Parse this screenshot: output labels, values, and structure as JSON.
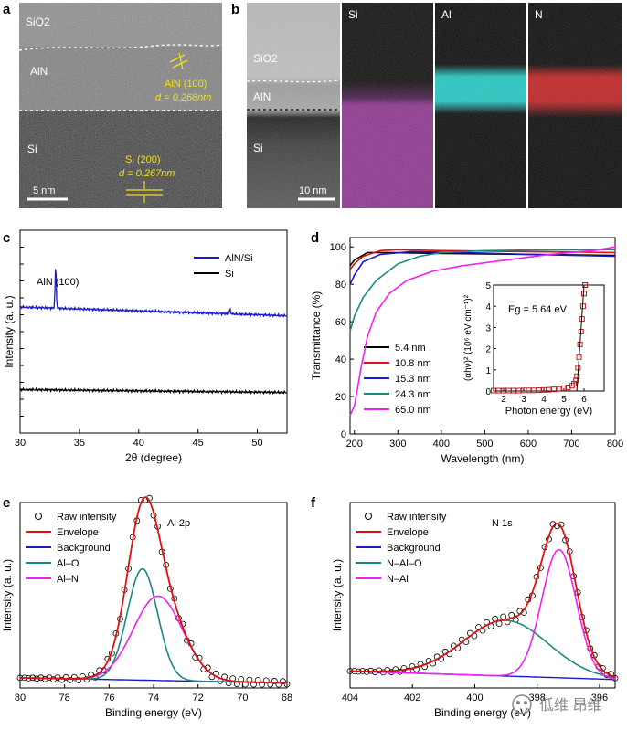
{
  "panels": {
    "a": {
      "label": "a",
      "layers": [
        "SiO2",
        "AlN",
        "Si"
      ],
      "aln_annot_1": "AlN (100)",
      "aln_annot_2": "d = 0.268nm",
      "si_annot_1": "Si (200)",
      "si_annot_2": "d = 0.267nm",
      "scalebar": "5 nm"
    },
    "b": {
      "label": "b",
      "layers": [
        "SiO2",
        "AlN",
        "Si"
      ],
      "scalebar": "10 nm",
      "maps": [
        {
          "title": "Si",
          "color": "#8a2a8c"
        },
        {
          "title": "Al",
          "color": "#14a3a0"
        },
        {
          "title": "N",
          "color": "#a01818"
        }
      ]
    }
  },
  "chart_data": [
    {
      "panel": "c",
      "type": "line",
      "xlabel": "2θ (degree)",
      "ylabel": "Intensity (a. u.)",
      "xlim": [
        30,
        52.5
      ],
      "xticks": [
        30,
        35,
        40,
        45,
        50
      ],
      "annotation": "AlN (100)",
      "series": [
        {
          "name": "AlN/Si",
          "color": "#1a1acc",
          "baseline_start": 8.7,
          "baseline_end": 8.1,
          "peaks": [
            {
              "x": 33.0,
              "height": 2.9
            },
            {
              "x": 47.7,
              "height": 0.3
            }
          ]
        },
        {
          "name": "Si",
          "color": "#000000",
          "baseline_start": 3.0,
          "baseline_end": 2.8,
          "peaks": []
        }
      ],
      "ylim": [
        0,
        14
      ]
    },
    {
      "panel": "d",
      "type": "line",
      "xlabel": "Wavelength (nm)",
      "ylabel": "Transmittance (%)",
      "xlim": [
        190,
        800
      ],
      "ylim": [
        0,
        105
      ],
      "xticks": [
        200,
        300,
        400,
        500,
        600,
        700,
        800
      ],
      "yticks": [
        0,
        20,
        40,
        60,
        80,
        100
      ],
      "series": [
        {
          "name": "5.4 nm",
          "color": "#000000",
          "points": [
            [
              190,
              90
            ],
            [
              200,
              93
            ],
            [
              230,
              97
            ],
            [
              280,
              97
            ],
            [
              400,
              96.5
            ],
            [
              600,
              96
            ],
            [
              800,
              95.5
            ]
          ]
        },
        {
          "name": "10.8 nm",
          "color": "#e01010",
          "points": [
            [
              190,
              88
            ],
            [
              200,
              91
            ],
            [
              220,
              95
            ],
            [
              260,
              98
            ],
            [
              300,
              98.5
            ],
            [
              400,
              98
            ],
            [
              600,
              97.5
            ],
            [
              800,
              97
            ]
          ]
        },
        {
          "name": "15.3 nm",
          "color": "#1a1acc",
          "points": [
            [
              190,
              80
            ],
            [
              200,
              85
            ],
            [
              220,
              92
            ],
            [
              260,
              96
            ],
            [
              330,
              97.5
            ],
            [
              450,
              97
            ],
            [
              600,
              96
            ],
            [
              800,
              95
            ]
          ]
        },
        {
          "name": "24.3 nm",
          "color": "#1a8a80",
          "points": [
            [
              190,
              55
            ],
            [
              200,
              63
            ],
            [
              220,
              73
            ],
            [
              250,
              82
            ],
            [
              300,
              91
            ],
            [
              350,
              95
            ],
            [
              400,
              97
            ],
            [
              500,
              98
            ],
            [
              600,
              98.3
            ],
            [
              800,
              98.5
            ]
          ]
        },
        {
          "name": "65.0 nm",
          "color": "#f020f0",
          "points": [
            [
              190,
              10
            ],
            [
              200,
              15
            ],
            [
              215,
              35
            ],
            [
              230,
              52
            ],
            [
              250,
              65
            ],
            [
              280,
              75
            ],
            [
              320,
              82
            ],
            [
              380,
              87
            ],
            [
              450,
              90
            ],
            [
              550,
              93
            ],
            [
              650,
              96
            ],
            [
              750,
              98
            ],
            [
              800,
              100
            ]
          ]
        }
      ],
      "inset": {
        "type": "scatter",
        "xlabel": "Photon energy (eV)",
        "ylabel": "(αhν)² (10⁶ eV cm⁻¹)²",
        "xlim": [
          1.5,
          7
        ],
        "ylim": [
          0,
          5
        ],
        "xticks": [
          2,
          3,
          4,
          5,
          6
        ],
        "yticks": [
          0,
          1,
          2,
          3,
          4,
          5
        ],
        "annotation": "Eg = 5.64 eV",
        "fit_line": [
          [
            5.64,
            0
          ],
          [
            6.0,
            5
          ]
        ],
        "points": [
          [
            1.5,
            0.02
          ],
          [
            1.75,
            0.02
          ],
          [
            2,
            0.02
          ],
          [
            2.25,
            0.02
          ],
          [
            2.5,
            0.02
          ],
          [
            2.75,
            0.02
          ],
          [
            3,
            0.03
          ],
          [
            3.25,
            0.03
          ],
          [
            3.5,
            0.03
          ],
          [
            3.75,
            0.04
          ],
          [
            4,
            0.05
          ],
          [
            4.25,
            0.06
          ],
          [
            4.5,
            0.08
          ],
          [
            4.75,
            0.1
          ],
          [
            5,
            0.13
          ],
          [
            5.2,
            0.17
          ],
          [
            5.4,
            0.25
          ],
          [
            5.5,
            0.35
          ],
          [
            5.6,
            0.5
          ],
          [
            5.65,
            0.7
          ],
          [
            5.7,
            1.1
          ],
          [
            5.75,
            1.6
          ],
          [
            5.8,
            2.2
          ],
          [
            5.85,
            2.8
          ],
          [
            5.9,
            3.4
          ],
          [
            5.95,
            4.0
          ],
          [
            6.0,
            4.6
          ],
          [
            6.05,
            5.0
          ]
        ]
      }
    },
    {
      "panel": "e",
      "type": "line",
      "title": "Al 2p",
      "xlabel": "Binding energy (eV)",
      "ylabel": "Intensity (a. u.)",
      "xlim": [
        80,
        68
      ],
      "xticks": [
        80,
        78,
        76,
        74,
        72,
        70,
        68
      ],
      "ylim": [
        0,
        1.1
      ],
      "legend": [
        {
          "name": "Raw intensity",
          "color": "#000000",
          "marker": "circle"
        },
        {
          "name": "Envelope",
          "color": "#e01010"
        },
        {
          "name": "Background",
          "color": "#1a1acc"
        },
        {
          "name": "Al–O",
          "color": "#1a8a80"
        },
        {
          "name": "Al–N",
          "color": "#f020f0"
        }
      ],
      "components": {
        "background": {
          "start": 0.06,
          "end": 0.03
        },
        "peaks": [
          {
            "name": "Al–O",
            "center": 74.5,
            "amplitude": 0.66,
            "fwhm": 1.6
          },
          {
            "name": "Al–N",
            "center": 73.8,
            "amplitude": 0.5,
            "fwhm": 2.6
          }
        ]
      }
    },
    {
      "panel": "f",
      "type": "line",
      "title": "N 1s",
      "xlabel": "Binding energy (eV)",
      "ylabel": "Intensity (a. u.)",
      "xlim": [
        404,
        395.5
      ],
      "xticks": [
        404,
        402,
        400,
        398,
        396
      ],
      "ylim": [
        0,
        1.1
      ],
      "legend": [
        {
          "name": "Raw intensity",
          "color": "#000000",
          "marker": "circle"
        },
        {
          "name": "Envelope",
          "color": "#e01010"
        },
        {
          "name": "Background",
          "color": "#1a1acc"
        },
        {
          "name": "N–Al–O",
          "color": "#1a8a80"
        },
        {
          "name": "N–Al",
          "color": "#f020f0"
        }
      ],
      "components": {
        "background": {
          "start": 0.1,
          "end": 0.05
        },
        "peaks": [
          {
            "name": "N–Al–O",
            "center": 399.0,
            "amplitude": 0.33,
            "fwhm": 3.2
          },
          {
            "name": "N–Al",
            "center": 397.3,
            "amplitude": 0.76,
            "fwhm": 1.3
          }
        ]
      }
    }
  ],
  "watermark": "低维 昂维"
}
